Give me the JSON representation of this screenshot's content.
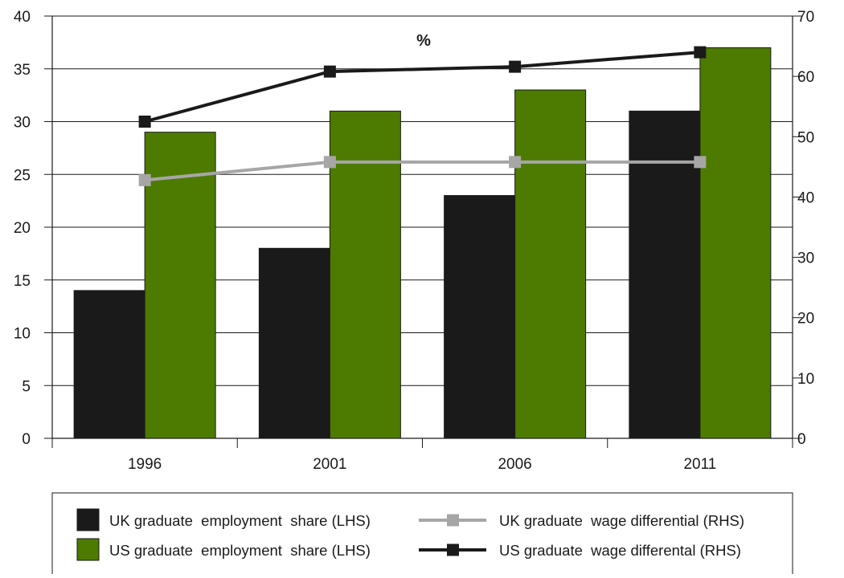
{
  "chart_data": {
    "type": "bar",
    "title": "%",
    "categories": [
      "1996",
      "2001",
      "2006",
      "2011"
    ],
    "left_axis": {
      "ylim": [
        0,
        40
      ],
      "ticks": [
        0,
        5,
        10,
        15,
        20,
        25,
        30,
        35,
        40
      ]
    },
    "right_axis": {
      "ylim": [
        0,
        70
      ],
      "ticks": [
        0,
        10,
        20,
        30,
        40,
        50,
        60,
        70
      ]
    },
    "grid": "horizontal",
    "legend_position": "bottom",
    "series": [
      {
        "name": "UK graduate  employment  share (LHS)",
        "type": "bar",
        "axis": "left",
        "color": "#1a1a1a",
        "values": [
          14,
          18,
          23,
          31
        ]
      },
      {
        "name": "US graduate  employment  share (LHS)",
        "type": "bar",
        "axis": "left",
        "color": "#4d7a00",
        "values": [
          29,
          31,
          33,
          37
        ]
      },
      {
        "name": "UK graduate  wage differential (RHS)",
        "type": "line",
        "axis": "right",
        "color": "#a6a6a6",
        "values": [
          42.8,
          45.8,
          45.8,
          45.8
        ]
      },
      {
        "name": "US graduate  wage differental (RHS)",
        "type": "line",
        "axis": "right",
        "color": "#1a1a1a",
        "values": [
          52.5,
          60.8,
          61.6,
          64.0
        ]
      }
    ]
  }
}
